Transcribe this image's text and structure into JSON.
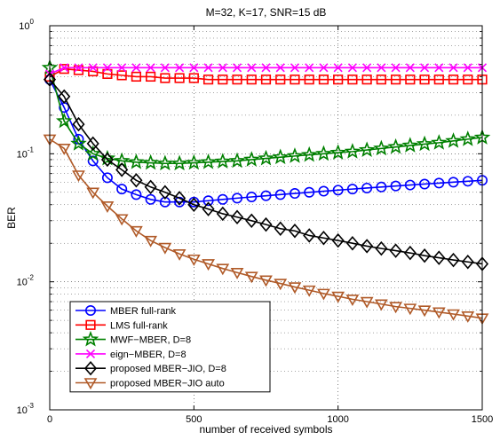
{
  "chart_data": {
    "type": "line",
    "title": "M=32, K=17, SNR=15 dB",
    "xlabel": "number of received symbols",
    "ylabel": "BER",
    "xlim": [
      0,
      1500
    ],
    "ylim": [
      0.001,
      1
    ],
    "yscale": "log",
    "grid": true,
    "legend_position": "bottom-left",
    "x_ticks": [
      {
        "value": 0,
        "label": "0"
      },
      {
        "value": 500,
        "label": "500"
      },
      {
        "value": 1000,
        "label": "1000"
      },
      {
        "value": 1500,
        "label": "1500"
      }
    ],
    "y_ticks": [
      {
        "value": 1,
        "base": "10",
        "exp": "0"
      },
      {
        "value": 0.1,
        "base": "10",
        "exp": "-1"
      },
      {
        "value": 0.01,
        "base": "10",
        "exp": "-2"
      },
      {
        "value": 0.001,
        "base": "10",
        "exp": "-3"
      }
    ],
    "series": [
      {
        "name": "MBER full-rank",
        "color": "#0000ff",
        "marker": "circle",
        "x": [
          0,
          50,
          100,
          150,
          200,
          250,
          300,
          350,
          400,
          450,
          500,
          550,
          600,
          650,
          700,
          750,
          800,
          850,
          900,
          950,
          1000,
          1050,
          1100,
          1150,
          1200,
          1250,
          1300,
          1350,
          1400,
          1450,
          1500
        ],
        "y": [
          0.38,
          0.23,
          0.13,
          0.088,
          0.065,
          0.053,
          0.048,
          0.044,
          0.042,
          0.042,
          0.042,
          0.043,
          0.044,
          0.045,
          0.046,
          0.047,
          0.048,
          0.049,
          0.05,
          0.051,
          0.052,
          0.053,
          0.054,
          0.055,
          0.056,
          0.057,
          0.058,
          0.059,
          0.06,
          0.061,
          0.062
        ]
      },
      {
        "name": "LMS full-rank",
        "color": "#ff0000",
        "marker": "square",
        "x": [
          0,
          50,
          100,
          150,
          200,
          250,
          300,
          350,
          400,
          450,
          500,
          550,
          600,
          650,
          700,
          750,
          800,
          850,
          900,
          950,
          1000,
          1050,
          1100,
          1150,
          1200,
          1250,
          1300,
          1350,
          1400,
          1450,
          1500
        ],
        "y": [
          0.4,
          0.46,
          0.45,
          0.44,
          0.42,
          0.41,
          0.4,
          0.4,
          0.39,
          0.39,
          0.39,
          0.38,
          0.38,
          0.38,
          0.38,
          0.38,
          0.38,
          0.38,
          0.38,
          0.38,
          0.38,
          0.38,
          0.38,
          0.38,
          0.38,
          0.38,
          0.38,
          0.38,
          0.38,
          0.38,
          0.38
        ]
      },
      {
        "name": "MWF−MBER, D=8",
        "color": "#008000",
        "marker": "star",
        "x": [
          0,
          50,
          100,
          150,
          200,
          250,
          300,
          350,
          400,
          450,
          500,
          550,
          600,
          650,
          700,
          750,
          800,
          850,
          900,
          950,
          1000,
          1050,
          1100,
          1150,
          1200,
          1250,
          1300,
          1350,
          1400,
          1450,
          1500
        ],
        "y": [
          0.47,
          0.18,
          0.12,
          0.1,
          0.092,
          0.088,
          0.086,
          0.085,
          0.084,
          0.084,
          0.085,
          0.086,
          0.087,
          0.088,
          0.09,
          0.092,
          0.094,
          0.096,
          0.098,
          0.1,
          0.102,
          0.104,
          0.107,
          0.11,
          0.113,
          0.116,
          0.119,
          0.122,
          0.126,
          0.13,
          0.134
        ]
      },
      {
        "name": "eign−MBER, D=8",
        "color": "#ff00ff",
        "marker": "x",
        "x": [
          0,
          50,
          100,
          150,
          200,
          250,
          300,
          350,
          400,
          450,
          500,
          550,
          600,
          650,
          700,
          750,
          800,
          850,
          900,
          950,
          1000,
          1050,
          1100,
          1150,
          1200,
          1250,
          1300,
          1350,
          1400,
          1450,
          1500
        ],
        "y": [
          0.42,
          0.47,
          0.47,
          0.47,
          0.47,
          0.47,
          0.47,
          0.47,
          0.47,
          0.47,
          0.47,
          0.47,
          0.47,
          0.47,
          0.47,
          0.47,
          0.47,
          0.47,
          0.47,
          0.47,
          0.47,
          0.47,
          0.47,
          0.47,
          0.47,
          0.47,
          0.47,
          0.47,
          0.47,
          0.47,
          0.47
        ]
      },
      {
        "name": "proposed MBER−JIO, D=8",
        "color": "#000000",
        "marker": "diamond",
        "x": [
          0,
          50,
          100,
          150,
          200,
          250,
          300,
          350,
          400,
          450,
          500,
          550,
          600,
          650,
          700,
          750,
          800,
          850,
          900,
          950,
          1000,
          1050,
          1100,
          1150,
          1200,
          1250,
          1300,
          1350,
          1400,
          1450,
          1500
        ],
        "y": [
          0.38,
          0.28,
          0.17,
          0.12,
          0.09,
          0.075,
          0.062,
          0.055,
          0.05,
          0.045,
          0.04,
          0.037,
          0.034,
          0.032,
          0.03,
          0.028,
          0.026,
          0.025,
          0.023,
          0.022,
          0.021,
          0.02,
          0.019,
          0.0182,
          0.0175,
          0.0168,
          0.016,
          0.0154,
          0.0148,
          0.0143,
          0.0138
        ]
      },
      {
        "name": "proposed MBER−JIO auto",
        "color": "#b05a28",
        "marker": "triangle-down",
        "x": [
          0,
          50,
          100,
          150,
          200,
          250,
          300,
          350,
          400,
          450,
          500,
          550,
          600,
          650,
          700,
          750,
          800,
          850,
          900,
          950,
          1000,
          1050,
          1100,
          1150,
          1200,
          1250,
          1300,
          1350,
          1400,
          1450,
          1500
        ],
        "y": [
          0.13,
          0.11,
          0.068,
          0.05,
          0.039,
          0.031,
          0.025,
          0.021,
          0.0185,
          0.0165,
          0.015,
          0.0138,
          0.0127,
          0.0118,
          0.011,
          0.0103,
          0.0097,
          0.0091,
          0.0086,
          0.0081,
          0.0077,
          0.0073,
          0.007,
          0.0067,
          0.0064,
          0.0062,
          0.006,
          0.0058,
          0.0056,
          0.0054,
          0.0052
        ]
      }
    ]
  }
}
